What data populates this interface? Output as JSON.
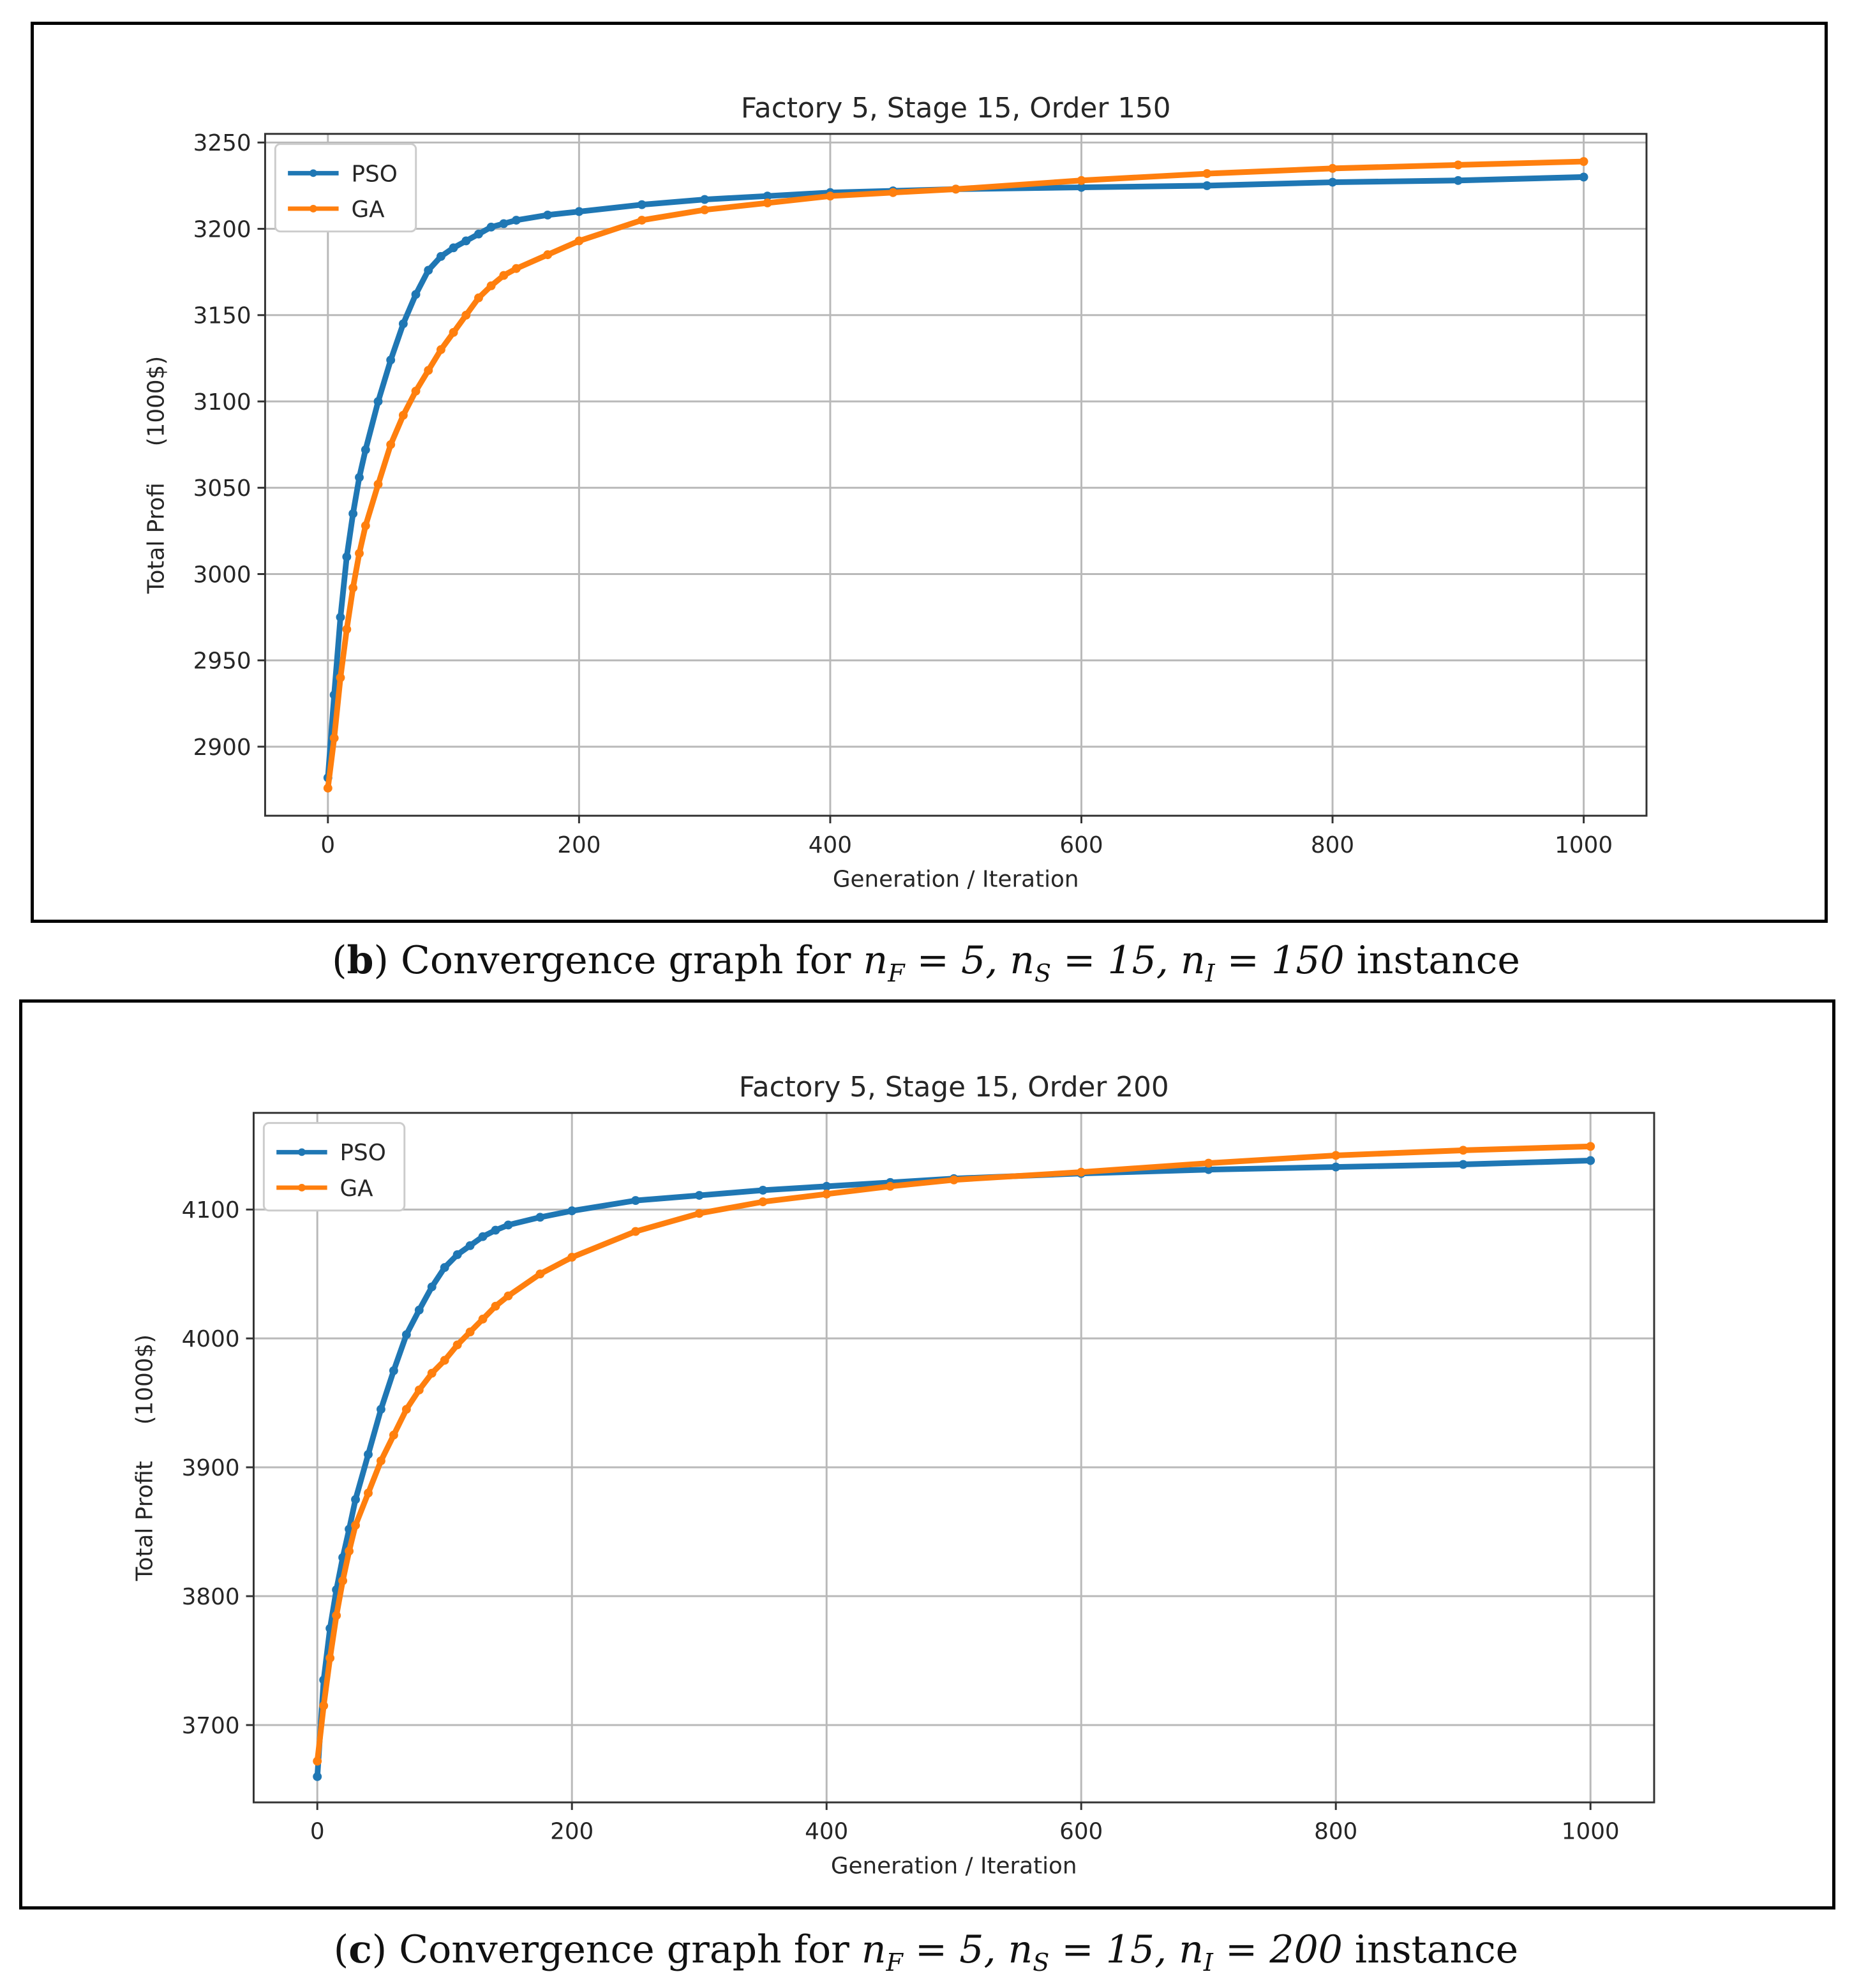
{
  "chart_data": [
    {
      "type": "line",
      "title": "Factory 5, Stage 15, Order 150",
      "xlabel": "Generation / Iteration",
      "ylabel": "Total Profi     (1000$)",
      "xlim": [
        -50,
        1050
      ],
      "ylim": [
        2860,
        3255
      ],
      "xticks": [
        0,
        200,
        400,
        600,
        800,
        1000
      ],
      "yticks": [
        2900,
        2950,
        3000,
        3050,
        3100,
        3150,
        3200,
        3250
      ],
      "grid": true,
      "legend": "top-left",
      "series": [
        {
          "name": "PSO",
          "color": "#1f77b4",
          "x": [
            0,
            5,
            10,
            15,
            20,
            25,
            30,
            40,
            50,
            60,
            70,
            80,
            90,
            100,
            110,
            120,
            130,
            140,
            150,
            175,
            200,
            250,
            300,
            350,
            400,
            450,
            500,
            600,
            700,
            800,
            900,
            1000
          ],
          "y": [
            2882,
            2930,
            2975,
            3010,
            3035,
            3056,
            3072,
            3100,
            3124,
            3145,
            3162,
            3176,
            3184,
            3189,
            3193,
            3197,
            3201,
            3203,
            3205,
            3208,
            3210,
            3214,
            3217,
            3219,
            3221,
            3222,
            3223,
            3224,
            3225,
            3227,
            3228,
            3230
          ]
        },
        {
          "name": "GA",
          "color": "#ff7f0e",
          "x": [
            0,
            5,
            10,
            15,
            20,
            25,
            30,
            40,
            50,
            60,
            70,
            80,
            90,
            100,
            110,
            120,
            130,
            140,
            150,
            175,
            200,
            250,
            300,
            350,
            400,
            450,
            500,
            600,
            700,
            800,
            900,
            1000
          ],
          "y": [
            2876,
            2905,
            2940,
            2968,
            2992,
            3012,
            3028,
            3052,
            3075,
            3092,
            3106,
            3118,
            3130,
            3140,
            3150,
            3160,
            3167,
            3173,
            3177,
            3185,
            3193,
            3205,
            3211,
            3215,
            3219,
            3221,
            3223,
            3228,
            3232,
            3235,
            3237,
            3239
          ]
        }
      ]
    },
    {
      "type": "line",
      "title": "Factory 5, Stage 15, Order 200",
      "xlabel": "Generation / Iteration",
      "ylabel": "Total Profit     (1000$)",
      "xlim": [
        -50,
        1050
      ],
      "ylim": [
        3640,
        4175
      ],
      "xticks": [
        0,
        200,
        400,
        600,
        800,
        1000
      ],
      "yticks": [
        3700,
        3800,
        3900,
        4000,
        4100
      ],
      "grid": true,
      "legend": "top-left",
      "series": [
        {
          "name": "PSO",
          "color": "#1f77b4",
          "x": [
            0,
            5,
            10,
            15,
            20,
            25,
            30,
            40,
            50,
            60,
            70,
            80,
            90,
            100,
            110,
            120,
            130,
            140,
            150,
            175,
            200,
            250,
            300,
            350,
            400,
            450,
            500,
            600,
            700,
            800,
            900,
            1000
          ],
          "y": [
            3660,
            3735,
            3775,
            3805,
            3830,
            3852,
            3875,
            3910,
            3945,
            3975,
            4003,
            4022,
            4040,
            4055,
            4065,
            4072,
            4079,
            4084,
            4088,
            4094,
            4099,
            4107,
            4111,
            4115,
            4118,
            4121,
            4124,
            4128,
            4131,
            4133,
            4135,
            4138
          ]
        },
        {
          "name": "GA",
          "color": "#ff7f0e",
          "x": [
            0,
            5,
            10,
            15,
            20,
            25,
            30,
            40,
            50,
            60,
            70,
            80,
            90,
            100,
            110,
            120,
            130,
            140,
            150,
            175,
            200,
            250,
            300,
            350,
            400,
            450,
            500,
            600,
            700,
            800,
            900,
            1000
          ],
          "y": [
            3672,
            3715,
            3752,
            3785,
            3812,
            3835,
            3855,
            3880,
            3905,
            3925,
            3945,
            3960,
            3973,
            3983,
            3995,
            4005,
            4015,
            4025,
            4033,
            4050,
            4063,
            4083,
            4097,
            4106,
            4112,
            4118,
            4123,
            4129,
            4136,
            4142,
            4146,
            4149
          ]
        }
      ]
    }
  ],
  "captions": [
    {
      "label": "b",
      "prefix": "Convergence graph for ",
      "nF": "5",
      "nS": "15",
      "nI": "150",
      "suffix": " instance"
    },
    {
      "label": "c",
      "prefix": "Convergence graph for ",
      "nF": "5",
      "nS": "15",
      "nI": "200",
      "suffix": " instance"
    }
  ]
}
